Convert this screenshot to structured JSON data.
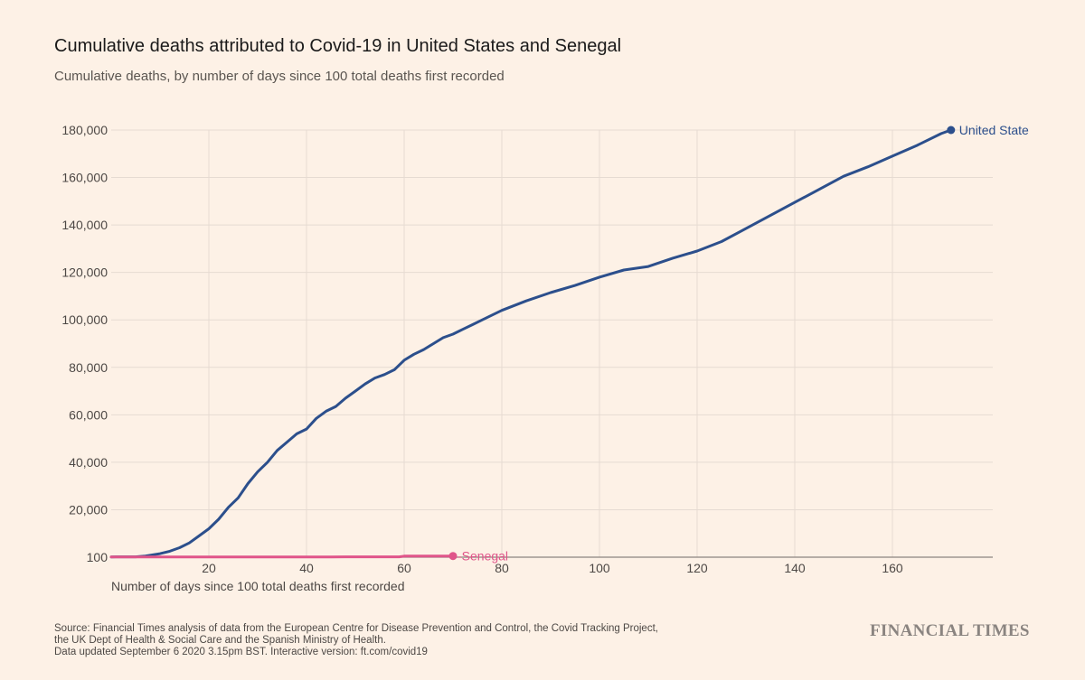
{
  "title": "Cumulative deaths attributed to Covid-19 in United States and Senegal",
  "subtitle": "Cumulative deaths, by number of days since 100 total deaths first recorded",
  "source_lines": [
    "Source: Financial Times analysis of data from the European Centre for Disease Prevention and Control, the Covid Tracking Project,",
    "the UK Dept of Health & Social Care and the Spanish Ministry of Health.",
    "Data updated September 6 2020 3.15pm BST. Interactive version: ft.com/covid19"
  ],
  "brand": "FINANCIAL TIMES",
  "colors": {
    "background": "#fdf1e6",
    "united_states": "#2c4f8c",
    "senegal": "#e0558a",
    "grid": "#e6dbd2",
    "axis": "#8c8580",
    "tick_text": "#4d4845"
  },
  "chart_data": {
    "type": "line",
    "title": "Cumulative deaths attributed to Covid-19 in United States and Senegal",
    "xlabel": "Number of days since 100 total deaths first recorded",
    "ylabel": "",
    "xlim": [
      0,
      180
    ],
    "ylim": [
      100,
      180000
    ],
    "x_ticks": [
      20,
      40,
      60,
      80,
      100,
      120,
      140,
      160
    ],
    "y_ticks": [
      100,
      20000,
      40000,
      60000,
      80000,
      100000,
      120000,
      140000,
      160000,
      180000
    ],
    "y_tick_labels": [
      "100",
      "20,000",
      "40,000",
      "60,000",
      "80,000",
      "100,000",
      "120,000",
      "140,000",
      "160,000",
      "180,000"
    ],
    "series": [
      {
        "name": "United State",
        "x": [
          0,
          5,
          7,
          10,
          12,
          14,
          16,
          18,
          20,
          22,
          24,
          26,
          28,
          30,
          32,
          34,
          36,
          38,
          40,
          42,
          44,
          46,
          48,
          50,
          52,
          54,
          56,
          58,
          60,
          62,
          64,
          66,
          68,
          70,
          72,
          74,
          76,
          80,
          85,
          90,
          95,
          100,
          105,
          110,
          115,
          120,
          125,
          130,
          135,
          140,
          145,
          150,
          155,
          160,
          165,
          170,
          172
        ],
        "values": [
          100,
          150,
          500,
          1500,
          2500,
          4000,
          6000,
          9000,
          12000,
          16000,
          21000,
          25000,
          31000,
          36000,
          40000,
          45000,
          48500,
          52000,
          54000,
          58500,
          61500,
          63500,
          67000,
          70000,
          73000,
          75500,
          77000,
          79000,
          83000,
          85500,
          87500,
          90000,
          92500,
          94000,
          96000,
          98000,
          100000,
          104000,
          108000,
          111500,
          114500,
          118000,
          121000,
          122500,
          126000,
          129000,
          133000,
          138500,
          144000,
          149500,
          155000,
          160500,
          164500,
          169000,
          173500,
          178500,
          180000
        ]
      },
      {
        "name": "Senegal",
        "x": [
          0,
          5,
          10,
          15,
          20,
          25,
          30,
          35,
          40,
          45,
          50,
          55,
          59,
          60,
          62,
          65,
          68,
          70
        ],
        "values": [
          100,
          100,
          100,
          105,
          110,
          115,
          120,
          125,
          130,
          133,
          135,
          138,
          140,
          450,
          460,
          470,
          480,
          490
        ]
      }
    ]
  }
}
